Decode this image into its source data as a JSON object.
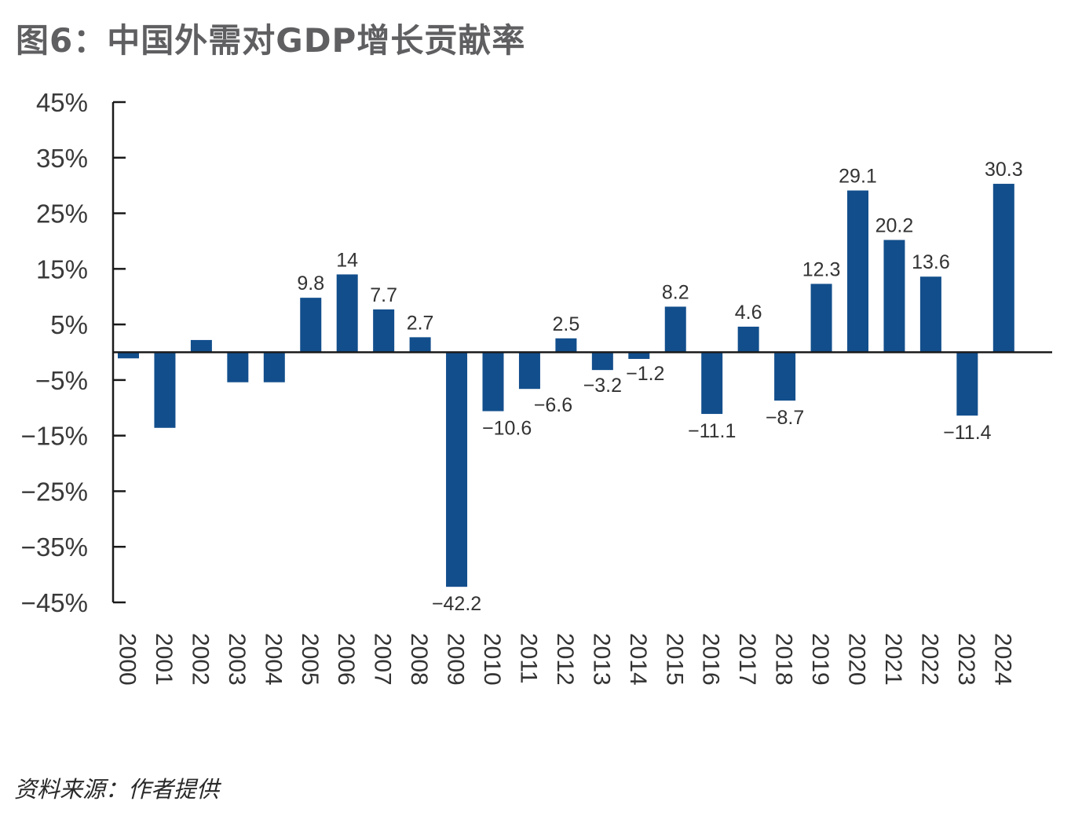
{
  "title": "图6：中国外需对GDP增长贡献率",
  "source": "资料来源：作者提供",
  "colors": {
    "bar": "#124e8c",
    "axis": "#1a1a1a",
    "text": "#333333",
    "title": "#5f5f62"
  },
  "chart_data": {
    "type": "bar",
    "title": "图6：中国外需对GDP增长贡献率",
    "xlabel": "",
    "ylabel": "",
    "ylim": [
      -45,
      45
    ],
    "yticks": [
      45,
      35,
      25,
      15,
      5,
      -5,
      -15,
      -25,
      -35,
      -45
    ],
    "ytick_labels": [
      "45%",
      "35%",
      "25%",
      "15%",
      "5%",
      "−5%",
      "−15%",
      "−25%",
      "−35%",
      "−45%"
    ],
    "grid": false,
    "legend": "none",
    "categories": [
      "2000",
      "2001",
      "2002",
      "2003",
      "2004",
      "2005",
      "2006",
      "2007",
      "2008",
      "2009",
      "2010",
      "2011",
      "2012",
      "2013",
      "2014",
      "2015",
      "2016",
      "2017",
      "2018",
      "2019",
      "2020",
      "2021",
      "2022",
      "2023",
      "2024"
    ],
    "values": [
      -1.1,
      -13.6,
      2.2,
      -5.4,
      -5.4,
      9.8,
      14,
      7.7,
      2.7,
      -42.2,
      -10.6,
      -6.6,
      2.5,
      -3.2,
      -1.2,
      8.2,
      -11.1,
      4.6,
      -8.7,
      12.3,
      29.1,
      20.2,
      13.6,
      -11.4,
      30.3
    ],
    "data_labels": [
      "",
      "",
      "",
      "",
      "",
      "9.8",
      "14",
      "7.7",
      "2.7",
      "−42.2",
      "−10.6",
      "−6.6",
      "2.5",
      "−3.2",
      "−1.2",
      "8.2",
      "−11.1",
      "4.6",
      "−8.7",
      "12.3",
      "29.1",
      "20.2",
      "13.6",
      "−11.4",
      "30.3"
    ]
  }
}
